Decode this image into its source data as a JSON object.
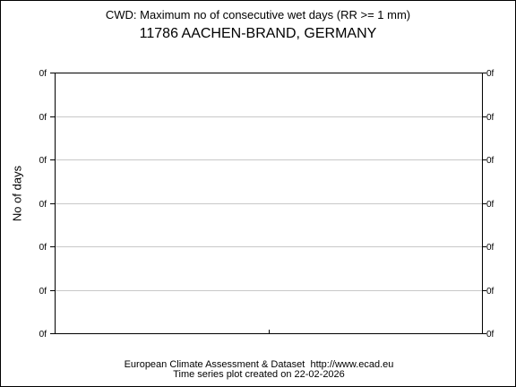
{
  "chart_data": {
    "type": "line",
    "title": "CWD: Maximum no of consecutive wet days (RR >= 1 mm)",
    "subtitle": "11786 AACHEN-BRAND, GERMANY",
    "ylabel": "No of days",
    "xlabel": "",
    "y_tick_labels": [
      "0f",
      "0f",
      "0f",
      "0f",
      "0f",
      "0f",
      "0f"
    ],
    "x_tick_labels": [],
    "series": [],
    "grid": true,
    "colors": {
      "frame": "#000000",
      "grid": "#c8c8c8",
      "background": "#ffffff"
    }
  },
  "footer": {
    "line1": "European Climate Assessment & Dataset  http://www.ecad.eu",
    "line2": "Time series plot created on 22-02-2026"
  }
}
